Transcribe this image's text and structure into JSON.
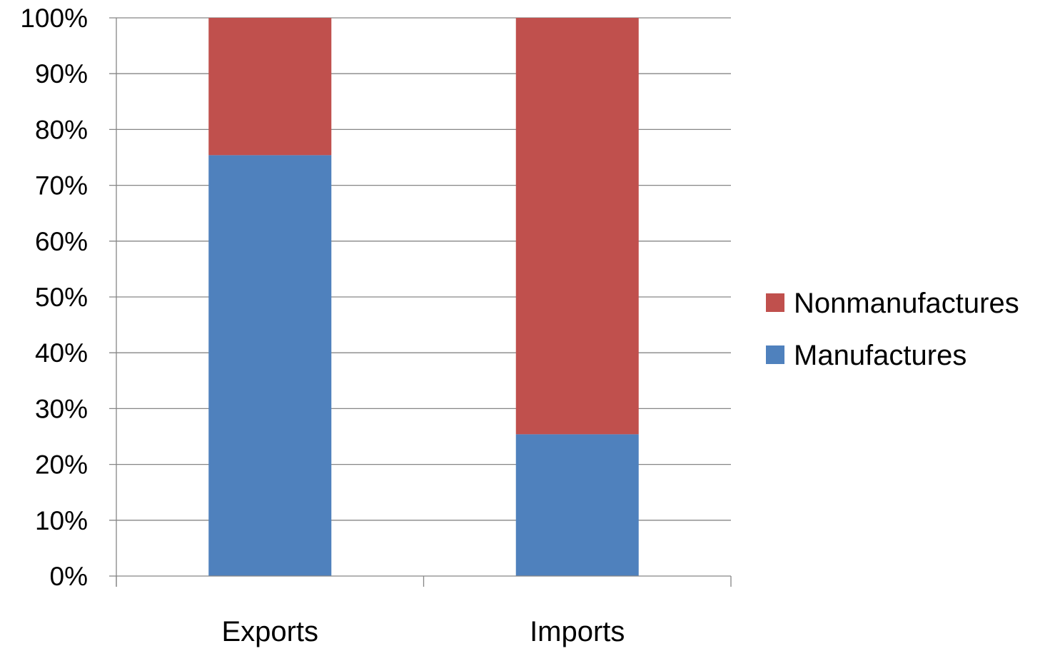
{
  "chart_data": {
    "type": "bar",
    "stacked": true,
    "percent_stacked": true,
    "categories": [
      "Exports",
      "Imports"
    ],
    "series": [
      {
        "name": "Manufactures",
        "values": [
          75.4,
          25.4
        ],
        "color": "#4f81bd"
      },
      {
        "name": "Nonmanufactures",
        "values": [
          24.6,
          74.6
        ],
        "color": "#c0504d"
      }
    ],
    "y_ticks": [
      "0%",
      "10%",
      "20%",
      "30%",
      "40%",
      "50%",
      "60%",
      "70%",
      "80%",
      "90%",
      "100%"
    ],
    "ylim": [
      0,
      100
    ],
    "grid": true,
    "legend_position": "right",
    "legend_order": [
      "Nonmanufactures",
      "Manufactures"
    ],
    "title": "",
    "xlabel": "",
    "ylabel": ""
  }
}
